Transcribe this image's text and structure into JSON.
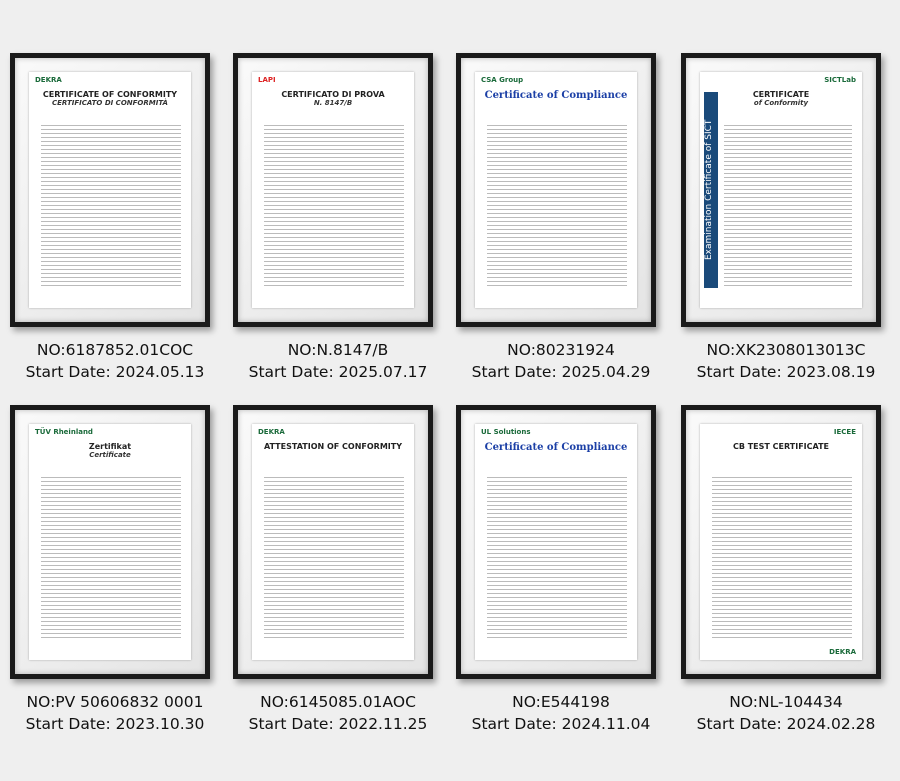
{
  "certificates": [
    {
      "no": "NO:6187852.01COC",
      "start": "Start Date: 2024.05.13",
      "title": "CERTIFICATE OF CONFORMITY",
      "subtitle": "CERTIFICATO DI CONFORMITÀ",
      "logo": "DEKRA"
    },
    {
      "no": "NO:N.8147/B",
      "start": "Start Date: 2025.07.17",
      "title": "CERTIFICATO DI PROVA",
      "subtitle": "N. 8147/B",
      "logo": "LAPI"
    },
    {
      "no": "NO:80231924",
      "start": "Start Date: 2025.04.29",
      "title": "Certificate of Compliance",
      "subtitle": "",
      "logo": "CSA Group"
    },
    {
      "no": "NO:XK2308013013C",
      "start": "Start Date: 2023.08.19",
      "title": "CERTIFICATE",
      "subtitle": "of Conformity",
      "logo": "SICTLab",
      "side": "Examination Certificate of SICT"
    },
    {
      "no": "NO:PV 50606832 0001",
      "start": "Start Date: 2023.10.30",
      "title": "Zertifikat",
      "subtitle": "Certificate",
      "logo": "TÜV Rheinland"
    },
    {
      "no": "NO:6145085.01AOC",
      "start": "Start Date: 2022.11.25",
      "title": "ATTESTATION OF CONFORMITY",
      "subtitle": "",
      "logo": "DEKRA"
    },
    {
      "no": "NO:E544198",
      "start": "Start Date: 2024.11.04",
      "title": "Certificate of Compliance",
      "subtitle": "",
      "logo": "UL Solutions"
    },
    {
      "no": "NO:NL-104434",
      "start": "Start Date: 2024.02.28",
      "title": "CB TEST CERTIFICATE",
      "subtitle": "",
      "logo": "IECEE",
      "footer": "DEKRA"
    }
  ]
}
